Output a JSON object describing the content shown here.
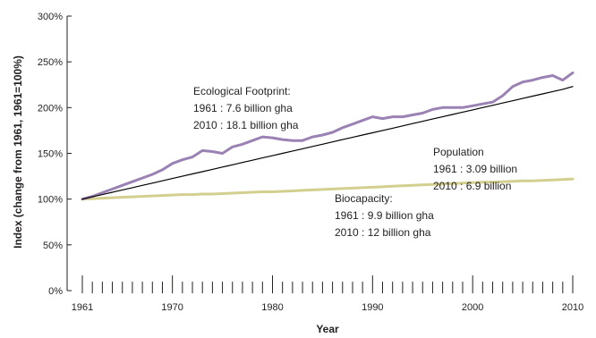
{
  "chart_data": {
    "type": "line",
    "title": "",
    "xlabel": "Year",
    "ylabel": "Index (change from 1961, 1961=100%)",
    "xlim": [
      1961,
      2010
    ],
    "ylim": [
      0,
      300
    ],
    "x_ticks": [
      "1961",
      "1970",
      "1980",
      "1990",
      "2000",
      "2010"
    ],
    "y_ticks": [
      "0%",
      "50%",
      "100%",
      "150%",
      "200%",
      "250%",
      "300%"
    ],
    "grid": false,
    "legend": "none",
    "colors": {
      "ecological_footprint": "#9b82b5",
      "population": "#000000",
      "biocapacity": "#d3cf8e",
      "axis": "#231f20"
    },
    "x": [
      1961,
      1962,
      1963,
      1964,
      1965,
      1966,
      1967,
      1968,
      1969,
      1970,
      1971,
      1972,
      1973,
      1974,
      1975,
      1976,
      1977,
      1978,
      1979,
      1980,
      1981,
      1982,
      1983,
      1984,
      1985,
      1986,
      1987,
      1988,
      1989,
      1990,
      1991,
      1992,
      1993,
      1994,
      1995,
      1996,
      1997,
      1998,
      1999,
      2000,
      2001,
      2002,
      2003,
      2004,
      2005,
      2006,
      2007,
      2008,
      2009,
      2010
    ],
    "series": [
      {
        "key": "ecological_footprint",
        "values": [
          100,
          103,
          107,
          111,
          115,
          119,
          123,
          127,
          132,
          139,
          143,
          146,
          153,
          152,
          150,
          157,
          160,
          164,
          168,
          167,
          165,
          164,
          164,
          168,
          170,
          173,
          178,
          182,
          186,
          190,
          188,
          190,
          190,
          192,
          194,
          198,
          200,
          200,
          200,
          202,
          204,
          206,
          213,
          223,
          228,
          230,
          233,
          235,
          230,
          238
        ]
      },
      {
        "key": "population",
        "values": [
          100,
          102.5,
          105,
          107.5,
          110,
          112.5,
          115,
          117.5,
          120,
          122.5,
          125,
          127.5,
          130,
          132.5,
          135,
          137.5,
          140,
          142.5,
          145,
          147.5,
          150,
          152.5,
          155,
          157.5,
          160,
          162.5,
          165,
          167.5,
          170,
          172.5,
          175,
          177.5,
          180,
          182.5,
          185,
          187.5,
          190,
          192.5,
          195,
          197.5,
          200,
          202.5,
          205,
          207.5,
          210,
          212.5,
          215,
          217.5,
          220,
          223
        ]
      },
      {
        "key": "biocapacity",
        "values": [
          100,
          100.5,
          101,
          101.5,
          102,
          102.5,
          103,
          103.5,
          104,
          104.5,
          105,
          105,
          105.5,
          105.5,
          106,
          106.5,
          107,
          107.5,
          108,
          108,
          108.5,
          109,
          109.5,
          110,
          110.5,
          111,
          111.5,
          112,
          112.5,
          113,
          113.5,
          114,
          114.5,
          115,
          115.5,
          116,
          116.5,
          117,
          117.5,
          118,
          118.5,
          118.5,
          119,
          119.5,
          120,
          120,
          120.5,
          121,
          121.5,
          122
        ]
      }
    ],
    "annotations": [
      {
        "key": "ecological_footprint",
        "lines": [
          "Ecological Footprint:",
          "1961 : 7.6 billion gha",
          "2010 : 18.1 billion gha"
        ]
      },
      {
        "key": "population",
        "lines": [
          "Population",
          "1961 : 3.09 billion",
          "2010 : 6.9 billion"
        ]
      },
      {
        "key": "biocapacity",
        "lines": [
          "Biocapacity:",
          "1961 : 9.9 billion gha",
          "2010 : 12 billion gha"
        ]
      }
    ]
  }
}
